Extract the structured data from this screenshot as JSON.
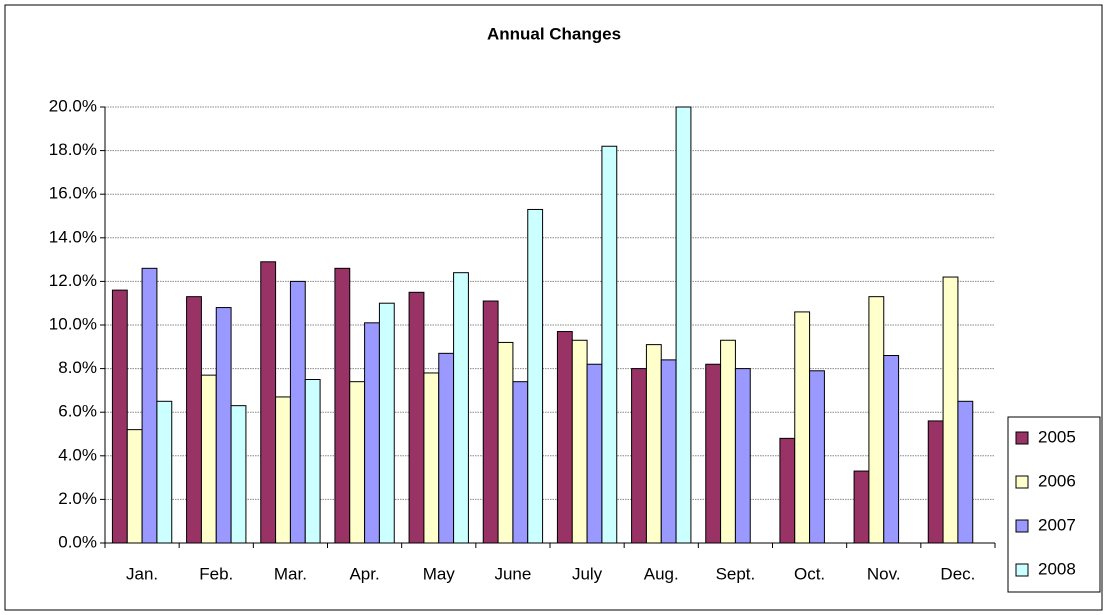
{
  "chart_data": {
    "type": "bar",
    "title": "Annual Changes",
    "categories": [
      "Jan.",
      "Feb.",
      "Mar.",
      "Apr.",
      "May",
      "June",
      "July",
      "Aug.",
      "Sept.",
      "Oct.",
      "Nov.",
      "Dec."
    ],
    "series": [
      {
        "name": "2005",
        "color": "#993366",
        "values": [
          11.6,
          11.3,
          12.9,
          12.6,
          11.5,
          11.1,
          9.7,
          8.0,
          8.2,
          4.8,
          3.3,
          5.6
        ]
      },
      {
        "name": "2006",
        "color": "#ffffcc",
        "values": [
          5.2,
          7.7,
          6.7,
          7.4,
          7.8,
          9.2,
          9.3,
          9.1,
          9.3,
          10.6,
          11.3,
          12.2
        ]
      },
      {
        "name": "2007",
        "color": "#9999ff",
        "values": [
          12.6,
          10.8,
          12.0,
          10.1,
          8.7,
          7.4,
          8.2,
          8.4,
          8.0,
          7.9,
          8.6,
          6.5
        ]
      },
      {
        "name": "2008",
        "color": "#ccffff",
        "values": [
          6.5,
          6.3,
          7.5,
          11.0,
          12.4,
          15.3,
          18.2,
          20.0,
          null,
          null,
          null,
          null
        ]
      }
    ],
    "ylim": [
      0,
      20
    ],
    "yticks": [
      {
        "value": 0,
        "label": "0.0%"
      },
      {
        "value": 2,
        "label": "2.0%"
      },
      {
        "value": 4,
        "label": "4.0%"
      },
      {
        "value": 6,
        "label": "6.0%"
      },
      {
        "value": 8,
        "label": "8.0%"
      },
      {
        "value": 10,
        "label": "10.0%"
      },
      {
        "value": 12,
        "label": "12.0%"
      },
      {
        "value": 14,
        "label": "14.0%"
      },
      {
        "value": 16,
        "label": "16.0%"
      },
      {
        "value": 18,
        "label": "18.0%"
      },
      {
        "value": 20,
        "label": "20.0%"
      }
    ],
    "grid": true,
    "legend": "right"
  }
}
